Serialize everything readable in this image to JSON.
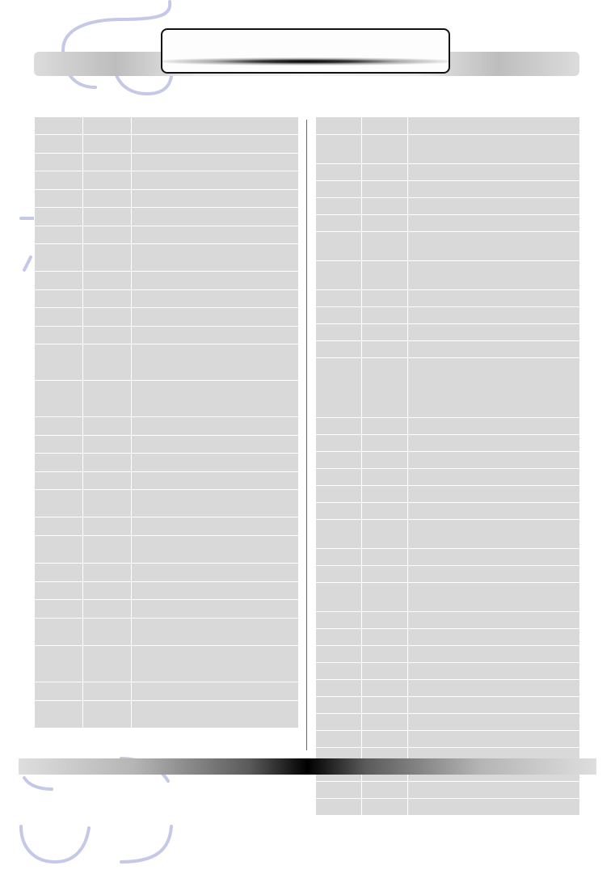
{
  "document": {
    "title": ""
  },
  "tables": {
    "left": {
      "columns": 3,
      "rows": [
        {
          "cells": [
            "",
            "",
            ""
          ]
        },
        {
          "cells": [
            "",
            "",
            ""
          ]
        },
        {
          "cells": [
            "",
            "",
            ""
          ]
        },
        {
          "cells": [
            "",
            "",
            ""
          ]
        },
        {
          "cells": [
            "",
            "",
            ""
          ]
        },
        {
          "cells": [
            "",
            "",
            ""
          ]
        },
        {
          "cells": [
            "",
            "",
            ""
          ]
        },
        {
          "cells": [
            "",
            "",
            ""
          ]
        },
        {
          "cells": [
            "",
            "",
            ""
          ]
        },
        {
          "cells": [
            "",
            "",
            ""
          ]
        },
        {
          "cells": [
            "",
            "",
            ""
          ]
        },
        {
          "cells": [
            "",
            "",
            ""
          ]
        },
        {
          "cells": [
            "",
            "",
            ""
          ]
        },
        {
          "cells": [
            "",
            "",
            ""
          ]
        },
        {
          "cells": [
            "",
            "",
            ""
          ]
        },
        {
          "cells": [
            "",
            "",
            ""
          ]
        },
        {
          "cells": [
            "",
            "",
            ""
          ]
        },
        {
          "cells": [
            "",
            "",
            ""
          ]
        },
        {
          "cells": [
            "",
            "",
            ""
          ]
        },
        {
          "cells": [
            "",
            "",
            ""
          ]
        },
        {
          "cells": [
            "",
            "",
            ""
          ]
        },
        {
          "cells": [
            "",
            "",
            ""
          ]
        },
        {
          "cells": [
            "",
            "",
            ""
          ]
        },
        {
          "cells": [
            "",
            "",
            ""
          ]
        },
        {
          "cells": [
            "",
            "",
            ""
          ]
        },
        {
          "cells": [
            "",
            "",
            ""
          ]
        },
        {
          "cells": [
            "",
            "",
            ""
          ]
        },
        {
          "cells": [
            "",
            "",
            ""
          ]
        }
      ]
    },
    "right": {
      "columns": 3,
      "rows": [
        {
          "cells": [
            "",
            "",
            ""
          ]
        },
        {
          "cells": [
            "",
            "",
            ""
          ]
        },
        {
          "cells": [
            "",
            "",
            ""
          ]
        },
        {
          "cells": [
            "",
            "",
            ""
          ]
        },
        {
          "cells": [
            "",
            "",
            ""
          ]
        },
        {
          "cells": [
            "",
            "",
            ""
          ]
        },
        {
          "cells": [
            "",
            "",
            ""
          ]
        },
        {
          "cells": [
            "",
            "",
            ""
          ]
        },
        {
          "cells": [
            "",
            "",
            ""
          ]
        },
        {
          "cells": [
            "",
            "",
            ""
          ]
        },
        {
          "cells": [
            "",
            "",
            ""
          ]
        },
        {
          "cells": [
            "",
            "",
            ""
          ]
        },
        {
          "cells": [
            "",
            "",
            ""
          ]
        },
        {
          "cells": [
            "",
            "",
            ""
          ]
        },
        {
          "cells": [
            "",
            "",
            ""
          ]
        },
        {
          "cells": [
            "",
            "",
            ""
          ]
        },
        {
          "cells": [
            "",
            "",
            ""
          ]
        },
        {
          "cells": [
            "",
            "",
            ""
          ]
        },
        {
          "cells": [
            "",
            "",
            ""
          ]
        },
        {
          "cells": [
            "",
            "",
            ""
          ]
        },
        {
          "cells": [
            "",
            "",
            ""
          ]
        },
        {
          "cells": [
            "",
            "",
            ""
          ]
        },
        {
          "cells": [
            "",
            "",
            ""
          ]
        },
        {
          "cells": [
            "",
            "",
            ""
          ]
        },
        {
          "cells": [
            "",
            "",
            ""
          ]
        },
        {
          "cells": [
            "",
            "",
            ""
          ]
        },
        {
          "cells": [
            "",
            "",
            ""
          ]
        },
        {
          "cells": [
            "",
            "",
            ""
          ]
        },
        {
          "cells": [
            "",
            "",
            ""
          ]
        },
        {
          "cells": [
            "",
            "",
            ""
          ]
        },
        {
          "cells": [
            "",
            "",
            ""
          ]
        },
        {
          "cells": [
            "",
            "",
            ""
          ]
        },
        {
          "cells": [
            "",
            "",
            ""
          ]
        },
        {
          "cells": [
            "",
            "",
            ""
          ]
        },
        {
          "cells": [
            "",
            "",
            ""
          ]
        }
      ]
    }
  },
  "colors": {
    "cell_fill": "#d9d9d9",
    "cell_border": "#ffffff",
    "decoration_stroke": "#c5c8e6"
  }
}
